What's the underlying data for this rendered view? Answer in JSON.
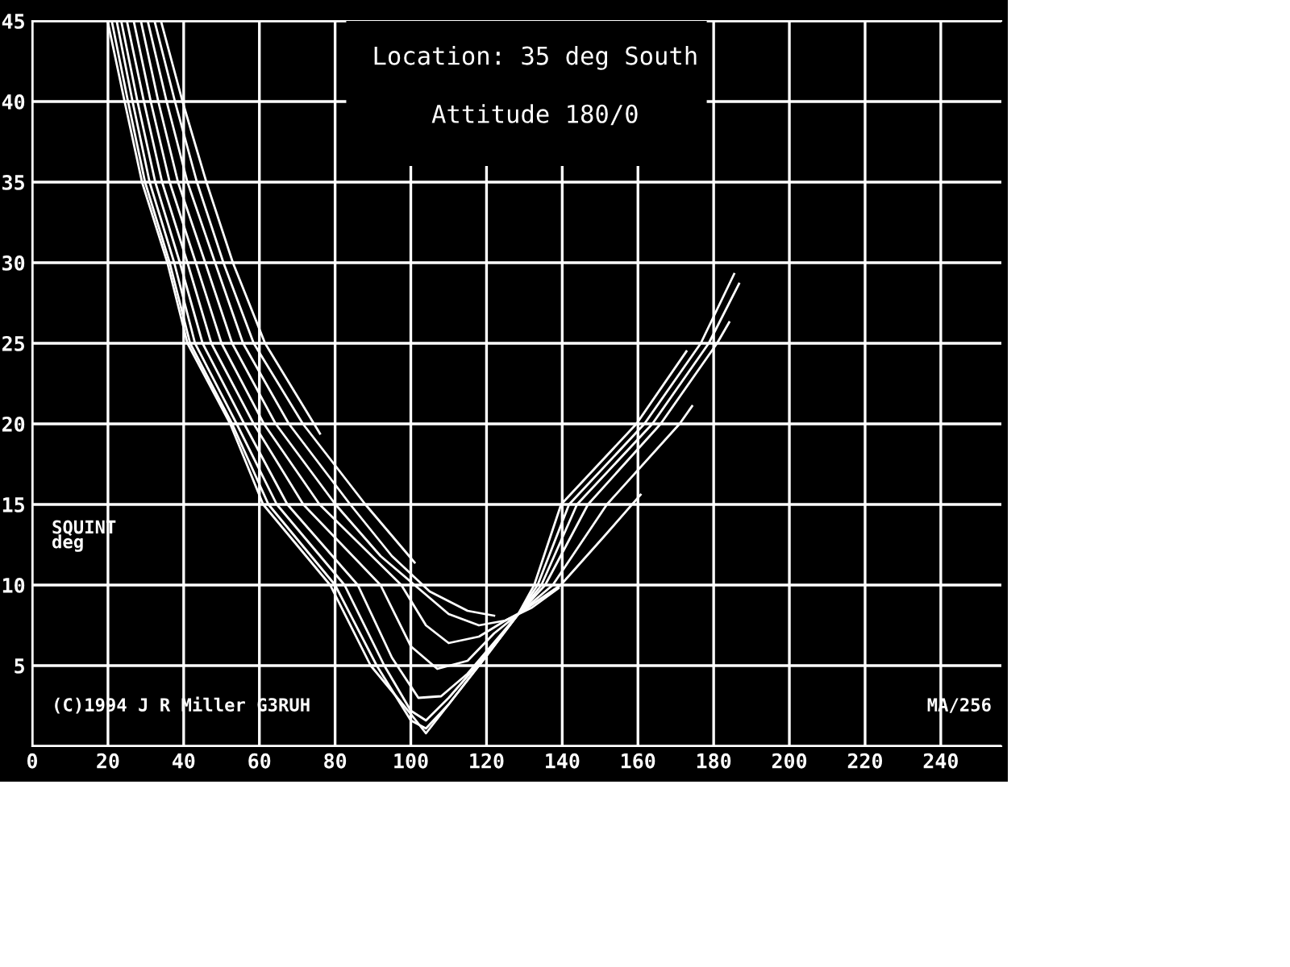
{
  "chart_data": {
    "type": "line",
    "title": "Location: 35 deg South",
    "subtitle": "Attitude 180/0",
    "xlabel": "MA/256",
    "ylabel": "SQUINT\ndeg",
    "annotations": [
      "(C)1994 J R Miller G3RUH"
    ],
    "xlim": [
      0,
      256
    ],
    "ylim": [
      0,
      45
    ],
    "xticks": [
      0,
      20,
      40,
      60,
      80,
      100,
      120,
      140,
      160,
      180,
      200,
      220,
      240
    ],
    "yticks": [
      {
        "value": 0,
        "label": null
      },
      5,
      10,
      15,
      20,
      25,
      30,
      35,
      40,
      45
    ],
    "grid": true,
    "marker": "none",
    "line_style": "solid",
    "series": [
      {
        "color": "#ffffff",
        "x": [
          19.9,
          24.4,
          29,
          35.7,
          41,
          52.3,
          61,
          78.7,
          89.4,
          100,
          104,
          112,
          120,
          128.4,
          132.6,
          139.7,
          159.6,
          172.8
        ],
        "values": [
          45,
          40,
          35,
          30,
          25,
          20,
          15,
          10,
          5,
          2,
          0.8,
          3.2,
          5.6,
          8.2,
          10,
          15,
          20,
          24.5
        ]
      },
      {
        "color": "#ffffff",
        "x": [
          21,
          25.3,
          29.8,
          36.3,
          41.7,
          52.8,
          62.4,
          80,
          91,
          100,
          104,
          110,
          120,
          128.4,
          133.5,
          141.8,
          161.7,
          176.6,
          185.4
        ],
        "values": [
          45,
          40,
          35,
          30,
          25,
          20,
          15,
          10,
          5,
          1.6,
          1.1,
          2.6,
          5.6,
          8.2,
          10,
          15,
          20,
          25,
          29.3
        ]
      },
      {
        "color": "#ffffff",
        "x": [
          22.3,
          26.5,
          31,
          37.5,
          43,
          54,
          64.6,
          82.5,
          93,
          100,
          104,
          110,
          120,
          128.4,
          134.5,
          143.9,
          163.8,
          178.7,
          186.7
        ],
        "values": [
          45,
          40,
          35,
          30,
          25,
          20,
          15,
          10,
          5,
          2.2,
          1.6,
          3,
          5.7,
          8.2,
          10,
          15,
          20,
          25,
          28.7
        ]
      },
      {
        "color": "#ffffff",
        "x": [
          23.5,
          27.8,
          32.5,
          39,
          45,
          56,
          67.4,
          86,
          95,
          102,
          108,
          115,
          128.4,
          135.5,
          146.8,
          166,
          180.9,
          184.1
        ],
        "values": [
          45,
          40,
          35,
          30,
          25,
          20,
          15,
          10,
          5.5,
          3,
          3.1,
          4.5,
          8.2,
          10,
          15,
          20,
          25,
          26.3
        ]
      },
      {
        "color": "#ffffff",
        "x": [
          25,
          29.5,
          34.3,
          41,
          47.3,
          58.5,
          71.6,
          92,
          100,
          107,
          115,
          122,
          128.4,
          137.5,
          151.8,
          171,
          174.3
        ],
        "values": [
          45,
          40,
          35,
          30,
          25,
          20,
          15,
          10,
          6.2,
          4.8,
          5.3,
          7,
          8.2,
          10,
          15,
          20,
          21.1
        ]
      },
      {
        "color": "#ffffff",
        "x": [
          26.8,
          31.3,
          36.3,
          43.2,
          50,
          61.2,
          75.9,
          97.5,
          104,
          110,
          118,
          125,
          129,
          139.6,
          151,
          160.7
        ],
        "values": [
          45,
          40,
          35,
          30,
          25,
          20,
          15,
          10,
          7.5,
          6.4,
          6.8,
          7.8,
          8.3,
          10,
          13,
          15.6
        ]
      },
      {
        "color": "#ffffff",
        "x": [
          28.7,
          33.3,
          38.5,
          45.7,
          52.8,
          64.3,
          80.1,
          92,
          100,
          110,
          118,
          125,
          132,
          139
        ],
        "values": [
          45,
          40,
          35,
          30,
          25,
          20,
          15,
          11.8,
          10.2,
          8.2,
          7.5,
          7.8,
          8.6,
          9.8
        ]
      },
      {
        "color": "#ffffff",
        "x": [
          30.5,
          35.5,
          41,
          48.3,
          55.7,
          67.8,
          84,
          95,
          105,
          115,
          122
        ],
        "values": [
          45,
          40,
          35,
          30,
          25,
          20,
          15,
          11.8,
          9.6,
          8.4,
          8.1
        ]
      },
      {
        "color": "#ffffff",
        "x": [
          32.3,
          37.7,
          43.5,
          50.5,
          58.5,
          71.5,
          88,
          101
        ],
        "values": [
          45,
          40,
          35,
          30,
          25,
          20,
          15,
          11.4
        ]
      },
      {
        "color": "#ffffff",
        "x": [
          34,
          39.7,
          46,
          53,
          61.5,
          76
        ],
        "values": [
          45,
          40,
          35,
          30,
          25,
          19.4
        ]
      }
    ]
  }
}
